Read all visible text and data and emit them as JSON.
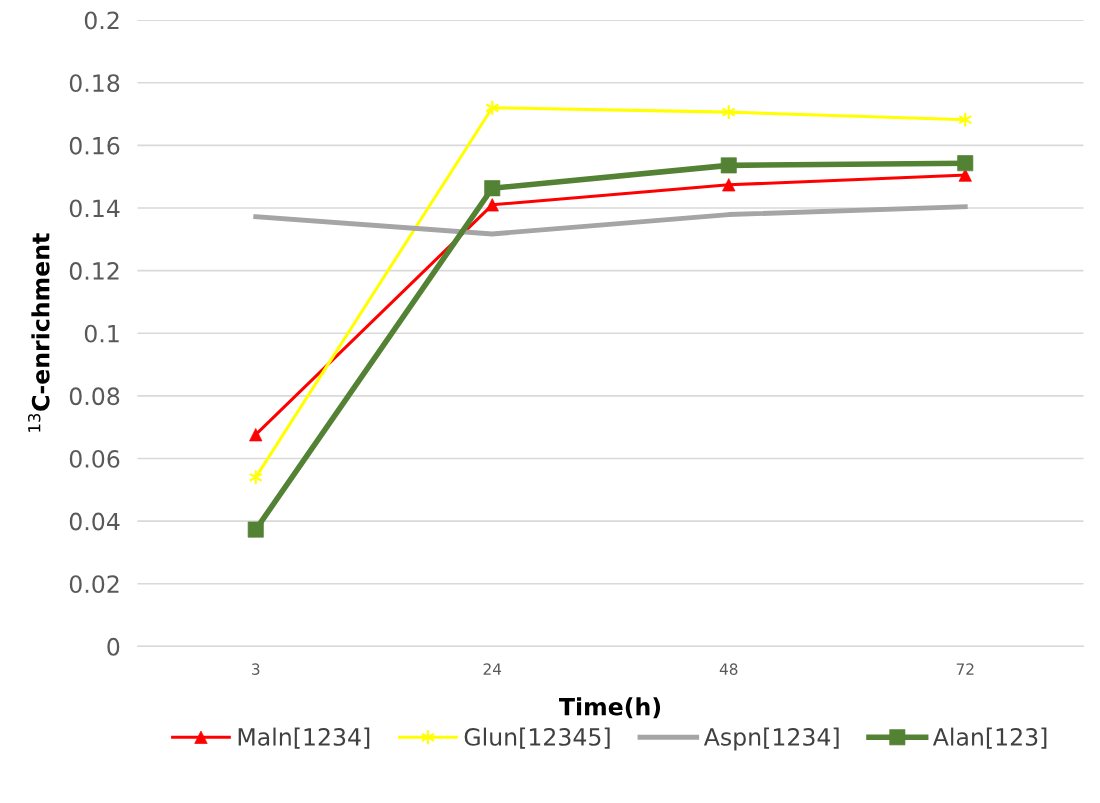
{
  "chart_data": {
    "type": "line",
    "xlabel": "Time(h)",
    "ylabel": "$^{13}$C-enrichment",
    "categories": [
      "3",
      "24",
      "48",
      "72"
    ],
    "series": [
      {
        "name": "Maln[1234]",
        "color": "#ff0000",
        "marker": "triangle",
        "values": [
          0.0676,
          0.141,
          0.1474,
          0.1505
        ]
      },
      {
        "name": "Glun[12345]",
        "color": "#ffff00",
        "marker": "cross",
        "values": [
          0.054,
          0.172,
          0.1706,
          0.1682
        ]
      },
      {
        "name": "Aspn[1234]",
        "color": "#a5a5a5",
        "marker": "none",
        "values": [
          0.1372,
          0.1317,
          0.1379,
          0.1404
        ]
      },
      {
        "name": "Alan[123]",
        "color": "#548235",
        "marker": "square",
        "values": [
          0.0373,
          0.1463,
          0.1536,
          0.1543
        ]
      }
    ],
    "ylim": [
      0,
      0.2
    ],
    "yticks": [
      0,
      0.02,
      0.04,
      0.06,
      0.08,
      0.1,
      0.12,
      0.14,
      0.16,
      0.18,
      0.2
    ],
    "grid": "y",
    "legend": "bottom",
    "line_style": "solid"
  }
}
